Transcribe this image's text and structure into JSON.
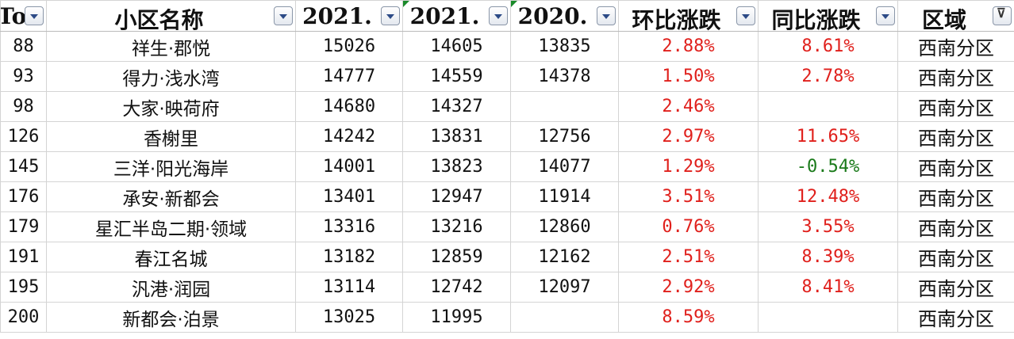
{
  "headers": [
    "To",
    "小区名称",
    "2021.",
    "2021.",
    "2020.",
    "环比涨跌",
    "同比涨跌",
    "区域"
  ],
  "colors": {
    "up": "#e0201c",
    "down": "#1a7a1a"
  },
  "rows": [
    {
      "rank": "88",
      "name": "祥生·郡悦",
      "a": "15026",
      "b": "14605",
      "c": "13835",
      "mom": "2.88%",
      "yoy": "8.61%",
      "region": "西南分区"
    },
    {
      "rank": "93",
      "name": "得力·浅水湾",
      "a": "14777",
      "b": "14559",
      "c": "14378",
      "mom": "1.50%",
      "yoy": "2.78%",
      "region": "西南分区"
    },
    {
      "rank": "98",
      "name": "大家·映荷府",
      "a": "14680",
      "b": "14327",
      "c": "",
      "mom": "2.46%",
      "yoy": "",
      "region": "西南分区"
    },
    {
      "rank": "126",
      "name": "香榭里",
      "a": "14242",
      "b": "13831",
      "c": "12756",
      "mom": "2.97%",
      "yoy": "11.65%",
      "region": "西南分区"
    },
    {
      "rank": "145",
      "name": "三洋·阳光海岸",
      "a": "14001",
      "b": "13823",
      "c": "14077",
      "mom": "1.29%",
      "yoy": "-0.54%",
      "region": "西南分区"
    },
    {
      "rank": "176",
      "name": "承安·新都会",
      "a": "13401",
      "b": "12947",
      "c": "11914",
      "mom": "3.51%",
      "yoy": "12.48%",
      "region": "西南分区"
    },
    {
      "rank": "179",
      "name": "星汇半岛二期·领域",
      "a": "13316",
      "b": "13216",
      "c": "12860",
      "mom": "0.76%",
      "yoy": "3.55%",
      "region": "西南分区"
    },
    {
      "rank": "191",
      "name": "春江名城",
      "a": "13182",
      "b": "12859",
      "c": "12162",
      "mom": "2.51%",
      "yoy": "8.39%",
      "region": "西南分区"
    },
    {
      "rank": "195",
      "name": "汎港·润园",
      "a": "13114",
      "b": "12742",
      "c": "12097",
      "mom": "2.92%",
      "yoy": "8.41%",
      "region": "西南分区"
    },
    {
      "rank": "200",
      "name": "新都会·泊景",
      "a": "13025",
      "b": "11995",
      "c": "",
      "mom": "8.59%",
      "yoy": "",
      "region": "西南分区"
    }
  ]
}
